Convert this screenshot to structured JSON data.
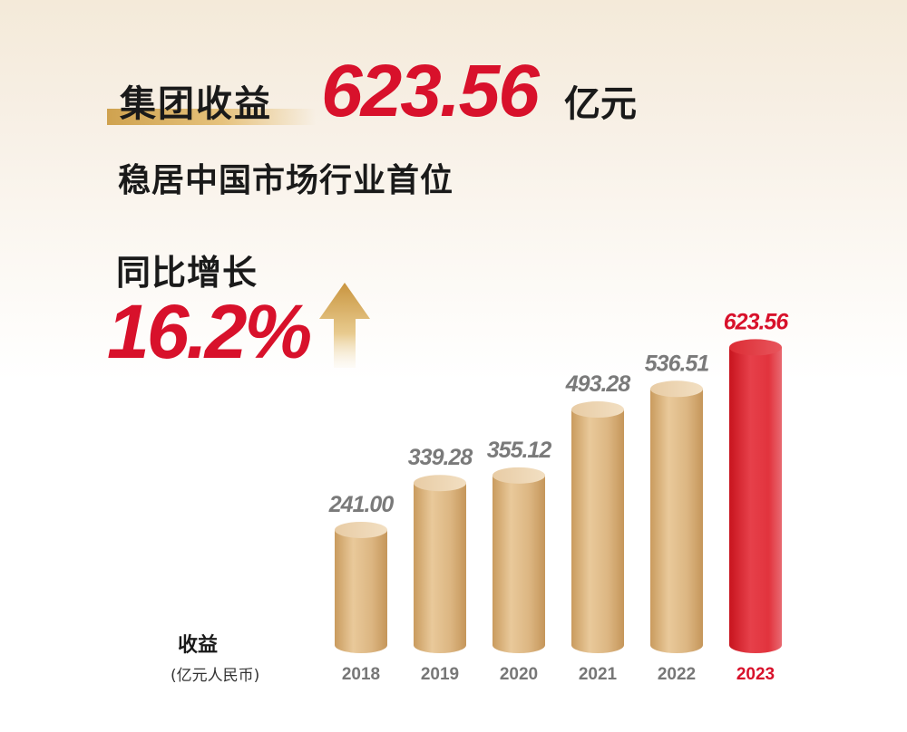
{
  "headline": {
    "label": "集团收益",
    "value": "623.56",
    "unit": "亿元"
  },
  "subheadline": "稳居中国市场行业首位",
  "growth": {
    "label": "同比增长",
    "value": "16.2%",
    "icon": "up-arrow-icon"
  },
  "legend": {
    "metric": "收益",
    "unit": "(亿元人民币)"
  },
  "colors": {
    "accent_red": "#d8112b",
    "bar_gold": "#d9b27c",
    "bar_highlight": "#e0363d",
    "label_gray": "#7a7a7a"
  },
  "chart_data": {
    "type": "bar",
    "categories": [
      "2018",
      "2019",
      "2020",
      "2021",
      "2022",
      "2023"
    ],
    "series": [
      {
        "values": [
          241.0,
          339.28,
          355.12,
          493.28,
          536.51,
          623.56
        ]
      }
    ],
    "value_labels": [
      "241.00",
      "339.28",
      "355.12",
      "493.28",
      "536.51",
      "623.56"
    ],
    "highlight_index": 5,
    "ylabel": "收益",
    "yunit": "(亿元人民币)",
    "grid": false,
    "legend": "none"
  }
}
